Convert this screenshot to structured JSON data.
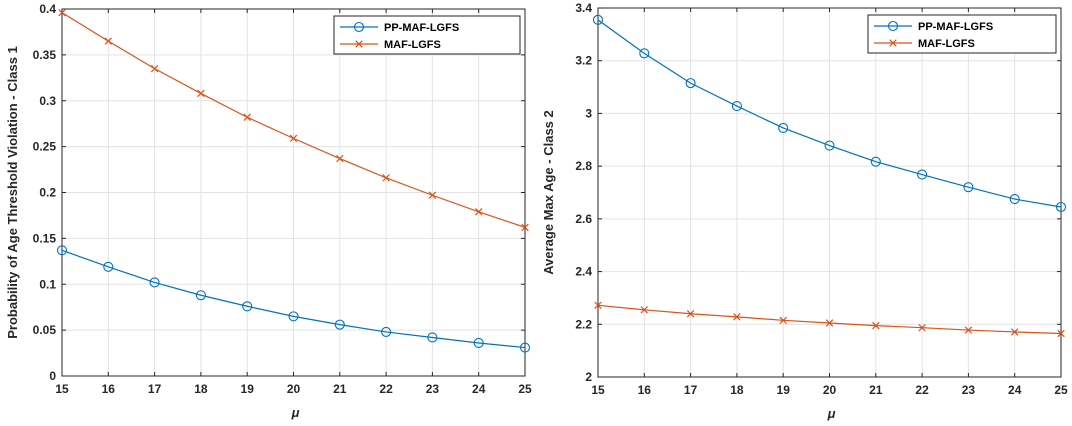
{
  "chart_data": [
    {
      "type": "line",
      "xlabel": "μ",
      "ylabel": "Probability of Age Threshold Violation - Class 1",
      "xlim": [
        15,
        25
      ],
      "ylim": [
        0,
        0.4
      ],
      "x": [
        15,
        16,
        17,
        18,
        19,
        20,
        21,
        22,
        23,
        24,
        25
      ],
      "xticks": [
        "15",
        "16",
        "17",
        "18",
        "19",
        "20",
        "21",
        "22",
        "23",
        "24",
        "25"
      ],
      "yticks": [
        "0",
        "0.05",
        "0.1",
        "0.15",
        "0.2",
        "0.25",
        "0.3",
        "0.35",
        "0.4"
      ],
      "grid": true,
      "legend_position": "top-right",
      "series": [
        {
          "name": "PP-MAF-LGFS",
          "color": "#0072BD",
          "marker": "circle",
          "values": [
            0.137,
            0.119,
            0.102,
            0.088,
            0.076,
            0.065,
            0.056,
            0.048,
            0.042,
            0.036,
            0.031
          ]
        },
        {
          "name": "MAF-LGFS",
          "color": "#D95319",
          "marker": "x",
          "values": [
            0.396,
            0.365,
            0.335,
            0.308,
            0.282,
            0.259,
            0.237,
            0.216,
            0.197,
            0.179,
            0.162
          ]
        }
      ]
    },
    {
      "type": "line",
      "xlabel": "μ",
      "ylabel": "Average Max Age - Class 2",
      "xlim": [
        15,
        25
      ],
      "ylim": [
        2,
        3.4
      ],
      "x": [
        15,
        16,
        17,
        18,
        19,
        20,
        21,
        22,
        23,
        24,
        25
      ],
      "xticks": [
        "15",
        "16",
        "17",
        "18",
        "19",
        "20",
        "21",
        "22",
        "23",
        "24",
        "25"
      ],
      "yticks": [
        "2",
        "2.2",
        "2.4",
        "2.6",
        "2.8",
        "3",
        "3.2",
        "3.4"
      ],
      "grid": true,
      "legend_position": "top-right",
      "series": [
        {
          "name": "PP-MAF-LGFS",
          "color": "#0072BD",
          "marker": "circle",
          "values": [
            3.355,
            3.228,
            3.115,
            3.028,
            2.945,
            2.878,
            2.817,
            2.768,
            2.72,
            2.675,
            2.645
          ]
        },
        {
          "name": "MAF-LGFS",
          "color": "#D95319",
          "marker": "x",
          "values": [
            2.272,
            2.255,
            2.24,
            2.228,
            2.215,
            2.205,
            2.195,
            2.187,
            2.178,
            2.171,
            2.165
          ]
        }
      ]
    }
  ]
}
